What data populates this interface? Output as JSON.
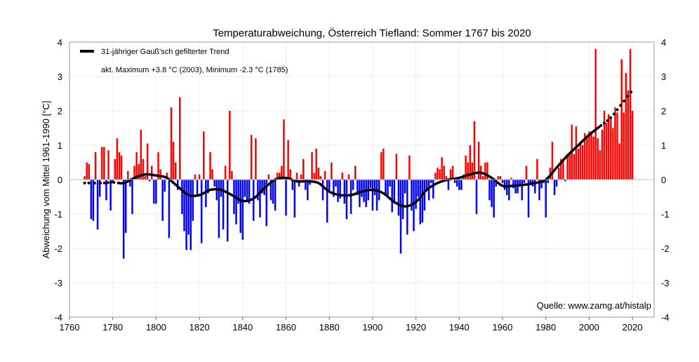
{
  "chart_data": {
    "type": "bar",
    "title": "Temperaturabweichung, Österreich Tiefland: Sommer 1767 bis 2020",
    "ylabel": "Abweichung vom Mittel 1961-1990 [°C]",
    "xlabel": "",
    "xlim": [
      1760,
      2030
    ],
    "ylim": [
      -4,
      4
    ],
    "xticks": [
      1760,
      1780,
      1800,
      1820,
      1840,
      1860,
      1880,
      1900,
      1920,
      1940,
      1960,
      1980,
      2000,
      2020
    ],
    "yticks": [
      -4,
      -3,
      -2,
      -1,
      0,
      1,
      2,
      3,
      4
    ],
    "grid": true,
    "legend": {
      "placement": "top-left",
      "trend_label": "31-jähriger Gauß'sch gefilterter Trend",
      "extremes_label": "akt. Maximum +3.8 °C (2003), Minimum -2.3 °C (1785)"
    },
    "source": "Quelle: www.zamg.at/histalp",
    "colors": {
      "positive": "#ff0000",
      "negative": "#0000ff",
      "trend": "#000000"
    },
    "start_year": 1767,
    "values": [
      0.1,
      0.5,
      0.45,
      -1.15,
      -1.2,
      0.8,
      -1.45,
      -0.5,
      0.95,
      0.95,
      -0.6,
      0.85,
      -0.9,
      -0.1,
      0.6,
      1.2,
      0.8,
      0.7,
      -2.3,
      -1.55,
      0.25,
      -0.2,
      -1.0,
      0.4,
      0.8,
      0.45,
      1.45,
      0.6,
      0.1,
      1.05,
      -0.05,
      0.4,
      -0.7,
      -0.7,
      0.8,
      0.3,
      -1.2,
      -0.35,
      0.2,
      -1.7,
      2.1,
      1.1,
      0.5,
      -0.3,
      2.4,
      -1.0,
      -1.5,
      -2.05,
      -1.6,
      -2.05,
      -1.2,
      0.15,
      -0.5,
      0.15,
      -1.85,
      1.4,
      -0.8,
      -0.4,
      0.8,
      0.3,
      -0.2,
      -0.6,
      -1.7,
      -0.5,
      -1.45,
      0.4,
      -1.8,
      2.0,
      0.25,
      -1.0,
      -1.3,
      -0.7,
      -1.55,
      -1.75,
      -0.5,
      -0.65,
      -0.7,
      1.3,
      -1.2,
      1.2,
      -0.6,
      -1.1,
      -0.4,
      -0.45,
      -1.35,
      0.15,
      -0.6,
      -0.7,
      -0.9,
      0.2,
      0.2,
      0.4,
      1.75,
      -1.05,
      1.15,
      0.3,
      -0.3,
      -1.1,
      0.2,
      -0.2,
      0.15,
      0.6,
      -0.3,
      -0.6,
      -0.15,
      0.8,
      0.2,
      0.9,
      0.35,
      0.1,
      -0.6,
      0.25,
      -1.25,
      -0.35,
      0.5,
      -0.5,
      -0.2,
      -0.65,
      -0.55,
      0.2,
      -0.7,
      -1.15,
      0.15,
      -1.0,
      -0.3,
      0.4,
      -0.45,
      -0.8,
      -0.5,
      -0.65,
      -0.8,
      -0.6,
      -0.25,
      -0.9,
      -0.45,
      -0.9,
      -0.6,
      0.8,
      0.9,
      -0.45,
      -0.45,
      -0.2,
      -0.95,
      -0.7,
      0.75,
      -1.05,
      -2.15,
      -1.15,
      -0.4,
      -1.6,
      0.7,
      -0.9,
      -1.5,
      -0.85,
      -0.5,
      -1.3,
      -1.25,
      -0.9,
      -0.3,
      -0.6,
      -0.1,
      -0.55,
      0.2,
      0.35,
      0.3,
      0.65,
      0.4,
      0.1,
      -0.3,
      0.3,
      0.4,
      -0.1,
      -0.2,
      -0.3,
      -0.3,
      0.15,
      0.7,
      0.5,
      1.0,
      0.5,
      1.7,
      -1.0,
      1.1,
      0.4,
      0.1,
      0.5,
      0.5,
      -0.6,
      -0.8,
      -1.1,
      -0.2,
      0.1,
      0.1,
      -0.1,
      -0.3,
      -0.45,
      -0.6,
      0.05,
      -0.25,
      -0.4,
      -0.4,
      -0.2,
      -0.6,
      -0.1,
      0.4,
      -1.1,
      -0.1,
      -0.2,
      -0.4,
      0.6,
      -0.6,
      -0.25,
      -0.1,
      -1.1,
      -0.1,
      0.35,
      1.1,
      -0.45,
      -0.2,
      0.35,
      0.6,
      0.6,
      -0.05,
      0.75,
      0.75,
      1.6,
      0.75,
      1.55,
      0.9,
      1.1,
      1.0,
      1.35,
      1.2,
      1.4,
      1.4,
      1.25,
      3.8,
      1.2,
      0.85,
      1.45,
      2.0,
      1.65,
      1.9,
      1.8,
      1.5,
      2.1,
      1.95,
      1.05,
      3.5,
      1.95,
      3.1,
      2.6,
      3.8,
      2.0
    ],
    "trend": {
      "x": [
        1767,
        1775,
        1780,
        1785,
        1790,
        1795,
        1800,
        1805,
        1810,
        1815,
        1820,
        1825,
        1830,
        1835,
        1840,
        1845,
        1850,
        1855,
        1860,
        1865,
        1870,
        1875,
        1880,
        1885,
        1890,
        1895,
        1900,
        1905,
        1910,
        1915,
        1920,
        1925,
        1930,
        1935,
        1940,
        1945,
        1950,
        1955,
        1960,
        1965,
        1970,
        1975,
        1980,
        1985,
        1990,
        1995,
        2000,
        2005,
        2010,
        2015,
        2020
      ],
      "y": [
        -0.1,
        -0.1,
        -0.08,
        -0.1,
        0.05,
        0.15,
        0.12,
        0.05,
        -0.2,
        -0.45,
        -0.45,
        -0.3,
        -0.3,
        -0.45,
        -0.62,
        -0.55,
        -0.25,
        0.0,
        0.05,
        -0.05,
        -0.05,
        -0.1,
        -0.35,
        -0.45,
        -0.45,
        -0.35,
        -0.3,
        -0.4,
        -0.65,
        -0.78,
        -0.65,
        -0.3,
        -0.1,
        0.0,
        0.05,
        0.15,
        0.2,
        0.05,
        -0.18,
        -0.18,
        -0.15,
        -0.1,
        0.0,
        0.35,
        0.7,
        1.0,
        1.3,
        1.55,
        1.8,
        2.2,
        2.6
      ],
      "dotted_before": 1782,
      "dotted_after": 2005
    }
  }
}
